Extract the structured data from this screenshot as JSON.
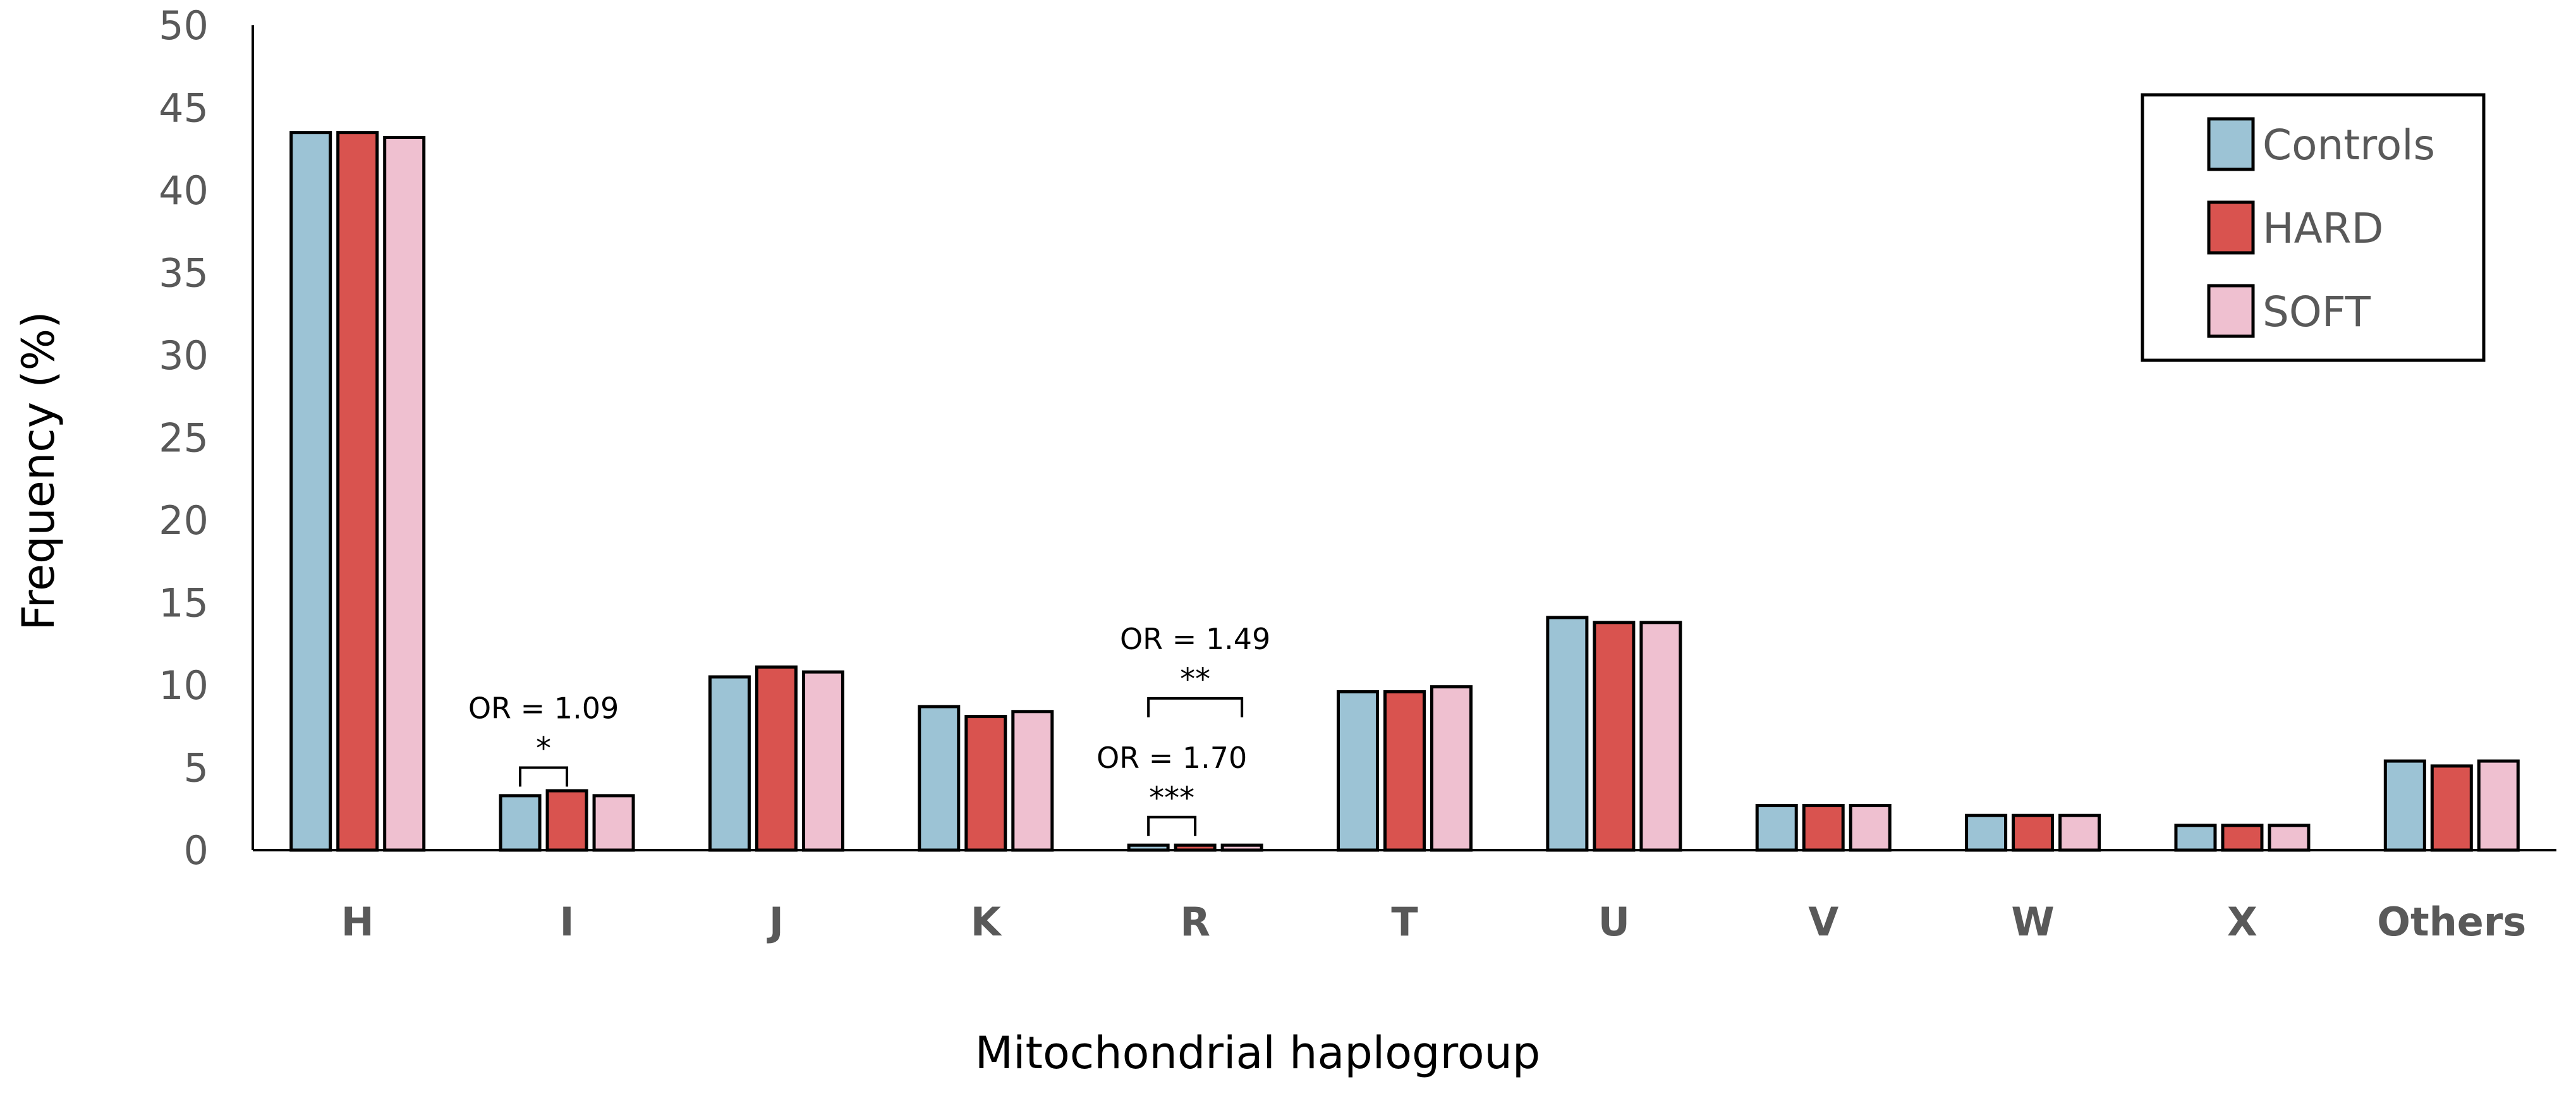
{
  "chart_data": {
    "type": "bar",
    "title": "",
    "xlabel": "Mitochondrial haplogroup",
    "ylabel": "Frequency (%)",
    "ylim": [
      0,
      50
    ],
    "yticks": [
      0,
      5,
      10,
      15,
      20,
      25,
      30,
      35,
      40,
      45,
      50
    ],
    "categories": [
      "H",
      "I",
      "J",
      "K",
      "R",
      "T",
      "U",
      "V",
      "W",
      "X",
      "Others"
    ],
    "series": [
      {
        "name": "Controls",
        "color": "#9cc3d5",
        "values": [
          43.5,
          3.3,
          10.5,
          8.7,
          0.3,
          9.6,
          14.1,
          2.7,
          2.1,
          1.5,
          5.4
        ]
      },
      {
        "name": "HARD",
        "color": "#d9534f",
        "values": [
          43.5,
          3.6,
          11.1,
          8.1,
          0.3,
          9.6,
          13.8,
          2.7,
          2.1,
          1.5,
          5.1
        ]
      },
      {
        "name": "SOFT",
        "color": "#efc0d0",
        "values": [
          43.2,
          3.3,
          10.8,
          8.4,
          0.3,
          9.9,
          13.8,
          2.7,
          2.1,
          1.5,
          5.4
        ]
      }
    ],
    "legend_position": "top-right",
    "annotations": [
      {
        "category": "I",
        "from_series": 0,
        "to_series": 1,
        "stars": "*",
        "text": "OR = 1.09",
        "bracket_y": 5.0
      },
      {
        "category": "R",
        "from_series": 0,
        "to_series": 1,
        "stars": "***",
        "text": "OR = 1.70",
        "bracket_y": 2.0
      },
      {
        "category": "R",
        "from_series": 0,
        "to_series": 2,
        "stars": "**",
        "text": "OR = 1.49",
        "bracket_y": 9.2
      }
    ]
  }
}
